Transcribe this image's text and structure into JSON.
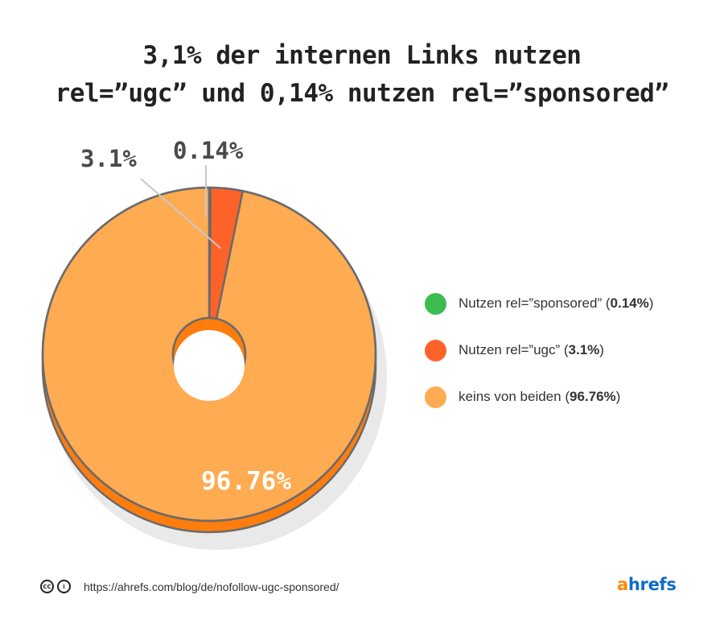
{
  "title": {
    "line1": "3,1% der internen Links nutzen",
    "line2": "rel=”ugc” und 0,14% nutzen rel=”sponsored”"
  },
  "chart_data": {
    "type": "pie",
    "style": "3d-donut",
    "slices": [
      {
        "label": "Nutzen rel=”sponsored”",
        "value": 0.14,
        "display": "0.14%",
        "callout": "0.14%",
        "color": "#3cbb50"
      },
      {
        "label": "Nutzen rel=”ugc”",
        "value": 3.1,
        "display": "3.1%",
        "callout": "3.1%",
        "color": "#ff6229"
      },
      {
        "label": "keins von beiden",
        "value": 96.76,
        "display": "96.76%",
        "callout": "96.76%",
        "color": "#ffab52"
      }
    ],
    "legend_position": "right"
  },
  "legend": [
    {
      "text": "Nutzen rel=”sponsored”",
      "value": "0.14%",
      "color": "#3cbb50"
    },
    {
      "text": "Nutzen rel=”ugc”",
      "value": "3.1%",
      "color": "#ff6229"
    },
    {
      "text": "keins von beiden",
      "value": "96.76%",
      "color": "#ffab52"
    }
  ],
  "footer": {
    "cc_icon": "CC",
    "by_icon": "i",
    "url": "https://ahrefs.com/blog/de/nofollow-ugc-sponsored/"
  },
  "brand": {
    "first": "a",
    "rest": "hrefs",
    "first_color": "#ff8800",
    "rest_color": "#0e6cc9"
  }
}
